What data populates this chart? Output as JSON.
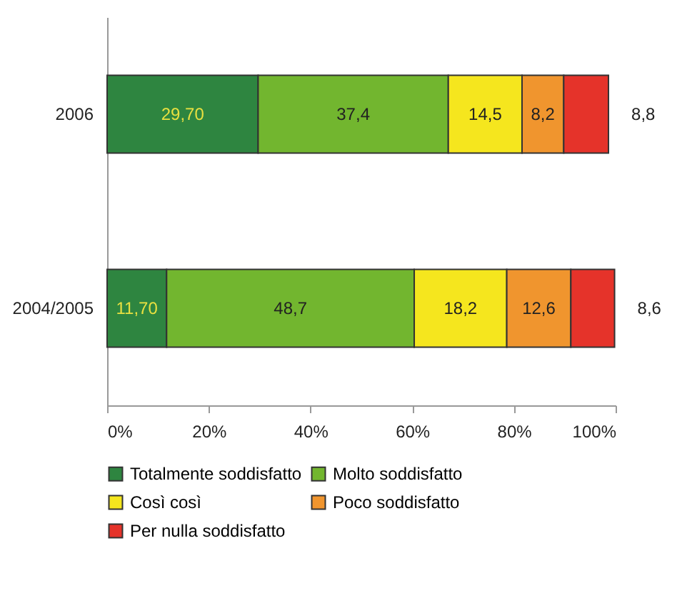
{
  "chart_data": {
    "type": "bar",
    "orientation": "horizontal",
    "stacked": true,
    "categories": [
      "2006",
      "2004/2005"
    ],
    "series": [
      {
        "name": "Totalmente soddisfatto",
        "color": "#2e8540",
        "values": [
          29.7,
          11.7
        ],
        "value_labels": [
          "29,70",
          "11,70"
        ]
      },
      {
        "name": "Molto soddisfatto",
        "color": "#72b62f",
        "values": [
          37.4,
          48.7
        ],
        "value_labels": [
          "37,4",
          "48,7"
        ]
      },
      {
        "name": "Così così",
        "color": "#f5e61e",
        "values": [
          14.5,
          18.2
        ],
        "value_labels": [
          "14,5",
          "18,2"
        ]
      },
      {
        "name": "Poco soddisfatto",
        "color": "#f0952e",
        "values": [
          8.2,
          12.6
        ],
        "value_labels": [
          "8,2",
          "12,6"
        ]
      },
      {
        "name": "Per nulla soddisfatto",
        "color": "#e5332a",
        "values": [
          8.8,
          8.6
        ],
        "value_labels": [
          "8,8",
          "8,6"
        ]
      }
    ],
    "xlim": [
      0,
      100
    ],
    "xticks": [
      {
        "value": 0,
        "label": "0%"
      },
      {
        "value": 20,
        "label": "20%"
      },
      {
        "value": 40,
        "label": "40%"
      },
      {
        "value": 60,
        "label": "60%"
      },
      {
        "value": 80,
        "label": "80%"
      },
      {
        "value": 100,
        "label": "100%"
      }
    ],
    "grid": false,
    "legend": "bottom"
  }
}
